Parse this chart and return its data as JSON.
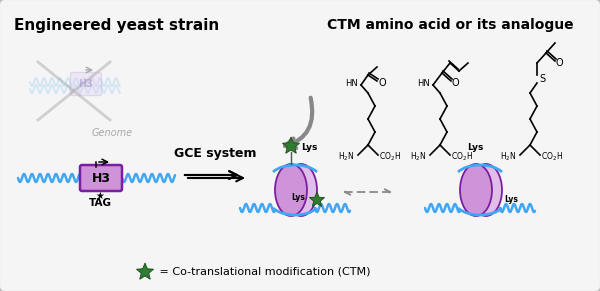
{
  "title_left": "Engineered yeast strain",
  "title_right": "CTM amino acid or its analogue",
  "legend_text": " = Co-translational modification (CTM)",
  "gce_text": "GCE system",
  "h3_tag_text": "TAG",
  "h3_text": "H3",
  "lys_text": "Lys",
  "lys_small": "Lys",
  "genome_text": "Genome",
  "star_color": "#2e7d32",
  "dna_color": "#42a5f5",
  "nucleosome_fill": "#ce93d8",
  "nucleosome_fill2": "#e1bee7",
  "nucleosome_edge": "#7b1fa2",
  "h3_box_color": "#ce93d8",
  "bg_color": "#f5f5f5",
  "outer_bg": "#d0d0d0"
}
